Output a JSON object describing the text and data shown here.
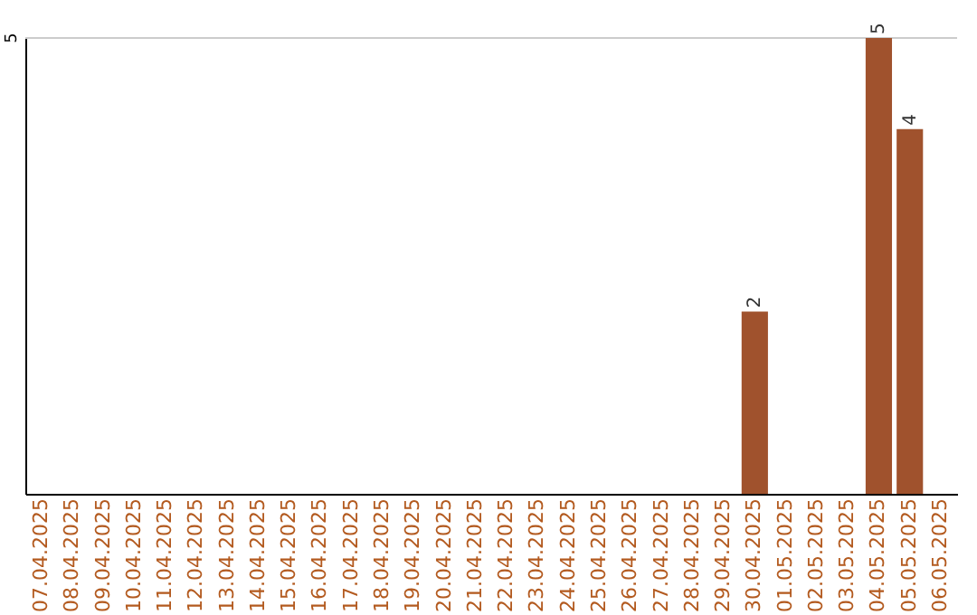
{
  "chart_data": {
    "type": "bar",
    "categories": [
      "07.04.2025",
      "08.04.2025",
      "09.04.2025",
      "10.04.2025",
      "11.04.2025",
      "12.04.2025",
      "13.04.2025",
      "14.04.2025",
      "15.04.2025",
      "16.04.2025",
      "17.04.2025",
      "18.04.2025",
      "19.04.2025",
      "20.04.2025",
      "21.04.2025",
      "22.04.2025",
      "23.04.2025",
      "24.04.2025",
      "25.04.2025",
      "26.04.2025",
      "27.04.2025",
      "28.04.2025",
      "29.04.2025",
      "30.04.2025",
      "01.05.2025",
      "02.05.2025",
      "03.05.2025",
      "04.05.2025",
      "05.05.2025",
      "06.05.2025"
    ],
    "values": [
      null,
      null,
      null,
      null,
      null,
      null,
      null,
      null,
      null,
      null,
      null,
      null,
      null,
      null,
      null,
      null,
      null,
      null,
      null,
      null,
      null,
      null,
      null,
      2,
      null,
      null,
      null,
      5,
      4,
      null
    ],
    "ylim": [
      0,
      5
    ],
    "value_labels": [
      null,
      null,
      null,
      null,
      null,
      null,
      null,
      null,
      null,
      null,
      null,
      null,
      null,
      null,
      null,
      null,
      null,
      null,
      null,
      null,
      null,
      null,
      null,
      "2",
      null,
      null,
      null,
      "5",
      "4",
      null
    ],
    "color": "#a0522d",
    "ref_lines": [
      {
        "axis": "y",
        "value": 5,
        "label": "5",
        "color": "#cccccc"
      }
    ]
  }
}
